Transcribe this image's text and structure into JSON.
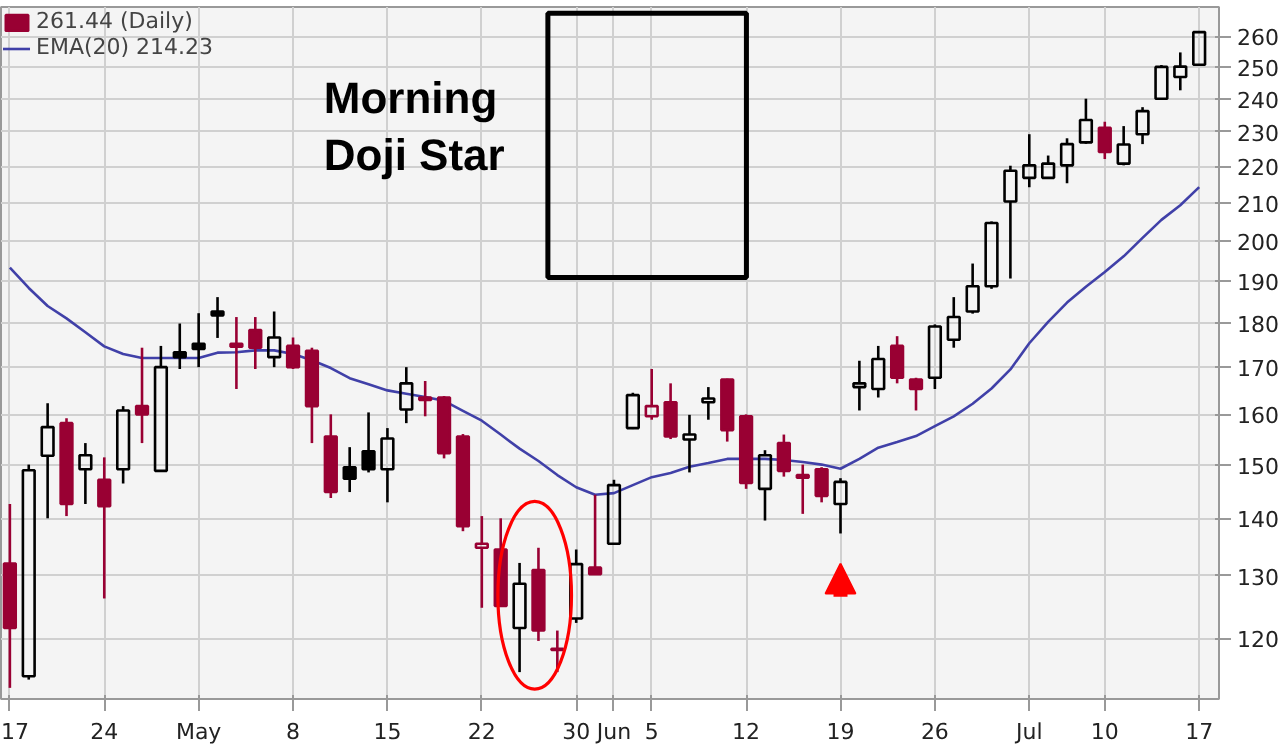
{
  "chart_data": {
    "type": "candlestick",
    "categories": [
      "17",
      null,
      null,
      null,
      null,
      "24",
      null,
      null,
      null,
      null,
      "May",
      null,
      null,
      null,
      null,
      "8",
      null,
      null,
      null,
      null,
      "15",
      null,
      null,
      null,
      null,
      "22",
      null,
      null,
      null,
      null,
      "30",
      null,
      "Jun",
      null,
      "5",
      null,
      null,
      null,
      null,
      "12",
      null,
      null,
      null,
      null,
      "19",
      null,
      null,
      null,
      null,
      "26",
      null,
      null,
      null,
      null,
      "Jul",
      null,
      null,
      null,
      "10",
      null,
      null,
      null,
      null,
      "17"
    ],
    "series": [
      {
        "name": "261.44 (Daily)",
        "ohlc": [
          [
            132.1,
            142.6,
            112.6,
            121.6
          ],
          [
            114.3,
            150,
            113.8,
            148.9
          ],
          [
            151.7,
            162.3,
            140,
            157.4
          ],
          [
            158.2,
            159.2,
            140.4,
            142.6
          ],
          [
            149.1,
            154.2,
            142.6,
            151.8
          ],
          [
            147.1,
            151.4,
            126.3,
            142.2
          ],
          [
            149.1,
            161.7,
            146.4,
            160.8
          ],
          [
            161.7,
            174.3,
            154.2,
            160
          ],
          [
            148.8,
            174.7,
            148.8,
            170
          ],
          [
            173.3,
            179.8,
            169.6,
            172.2
          ],
          [
            175.2,
            182.2,
            170,
            174
          ],
          [
            182.6,
            186,
            176.5,
            181.7
          ],
          [
            175.2,
            181.3,
            165.3,
            174.5
          ],
          [
            178.3,
            181.3,
            169.6,
            174.3
          ],
          [
            172.2,
            182.6,
            170,
            176.6
          ],
          [
            174.7,
            176.6,
            169.6,
            170
          ],
          [
            173.6,
            174.3,
            154.2,
            161.7
          ],
          [
            155.5,
            160,
            143.7,
            144.8
          ],
          [
            149.5,
            153.4,
            144.8,
            147.3
          ],
          [
            152.6,
            160.4,
            148.5,
            149.1
          ],
          [
            149.1,
            157.2,
            142.9,
            155.1
          ],
          [
            161,
            170,
            158.2,
            166.5
          ],
          [
            163.5,
            167,
            159.6,
            163
          ],
          [
            163.5,
            163.8,
            151.2,
            152.2
          ],
          [
            155.5,
            156,
            137.7,
            138.6
          ],
          [
            134.8,
            140.4,
            124.8,
            135.5
          ],
          [
            134.5,
            140,
            125,
            125.1
          ],
          [
            121.6,
            132.2,
            114.9,
            128.7
          ],
          [
            131,
            134.8,
            119.6,
            121.2
          ],
          [
            118.4,
            121.2,
            114.9,
            118.2
          ],
          [
            123.1,
            134.5,
            122.4,
            132
          ],
          [
            131.4,
            144.3,
            130.3,
            130.3
          ],
          [
            135.5,
            147.1,
            135.5,
            146.1
          ],
          [
            157.2,
            164.5,
            157,
            164
          ],
          [
            159.6,
            169.6,
            158.9,
            161.7
          ],
          [
            162.5,
            166.5,
            155,
            155.5
          ],
          [
            154.9,
            159.9,
            148.5,
            155.9
          ],
          [
            162.5,
            165.7,
            158.9,
            163.3
          ],
          [
            167.3,
            167.5,
            154.5,
            156.8
          ],
          [
            159.6,
            160,
            145.4,
            146.5
          ],
          [
            145.4,
            152.8,
            139.6,
            151.8
          ],
          [
            154.2,
            155.9,
            147.7,
            148.8
          ],
          [
            148,
            150,
            140.8,
            147.5
          ],
          [
            149.1,
            149.5,
            142.9,
            144.1
          ],
          [
            142.6,
            147.4,
            137.3,
            146.7
          ],
          [
            165.7,
            171.4,
            160.8,
            166.5
          ],
          [
            165.3,
            174.7,
            163.5,
            171.8
          ],
          [
            174.7,
            176.9,
            166.5,
            167.7
          ],
          [
            167.3,
            167.7,
            160.8,
            165.3
          ],
          [
            167.7,
            179.6,
            165.3,
            179.1
          ],
          [
            176.1,
            186,
            174.3,
            181.3
          ],
          [
            182.6,
            194.2,
            182.1,
            188.6
          ],
          [
            188.6,
            205,
            188,
            204.6
          ],
          [
            210.3,
            220.2,
            190.5,
            218.8
          ],
          [
            216.8,
            229.3,
            214.2,
            220.3
          ],
          [
            216.8,
            223.1,
            216.5,
            220.8
          ],
          [
            220.3,
            228.1,
            215.3,
            226.4
          ],
          [
            226.9,
            240,
            226.5,
            233.5
          ],
          [
            231.2,
            233,
            222.1,
            224.1
          ],
          [
            220.8,
            231.7,
            220.3,
            226.3
          ],
          [
            229.3,
            237.4,
            226.4,
            236.2
          ],
          [
            240,
            250.6,
            240,
            250
          ],
          [
            246.8,
            254.7,
            242.6,
            250.1
          ],
          [
            250.7,
            261.5,
            250.5,
            261.44
          ]
        ],
        "colors": [
          "#990033",
          "#000000",
          "#000000",
          "#990033",
          "#000000",
          "#990033",
          "#000000",
          "#990033",
          "#000000",
          "#000000",
          "#000000",
          "#000000",
          "#990033",
          "#990033",
          "#000000",
          "#990033",
          "#990033",
          "#990033",
          "#000000",
          "#000000",
          "#000000",
          "#000000",
          "#990033",
          "#990033",
          "#990033",
          "#990033",
          "#990033",
          "#000000",
          "#990033",
          "#990033",
          "#000000",
          "#990033",
          "#000000",
          "#000000",
          "#990033",
          "#990033",
          "#000000",
          "#000000",
          "#990033",
          "#990033",
          "#000000",
          "#990033",
          "#990033",
          "#990033",
          "#000000",
          "#000000",
          "#000000",
          "#990033",
          "#990033",
          "#000000",
          "#000000",
          "#000000",
          "#000000",
          "#000000",
          "#000000",
          "#000000",
          "#000000",
          "#000000",
          "#990033",
          "#000000",
          "#000000",
          "#000000",
          "#000000",
          "#000000"
        ]
      },
      {
        "name": "EMA(20) 214.23",
        "type": "line",
        "color": "#4040a8",
        "values": [
          193.2,
          188.2,
          183.9,
          181.0,
          177.8,
          174.6,
          172.9,
          172.0,
          172.0,
          172.0,
          172.0,
          173.2,
          173.3,
          173.7,
          173.7,
          172.9,
          171.5,
          169.8,
          167.6,
          166.3,
          165.0,
          164.3,
          163.6,
          162.8,
          160.7,
          158.7,
          155.9,
          153.1,
          150.7,
          148.0,
          145.7,
          144.3,
          144.6,
          146.1,
          147.6,
          148.4,
          149.6,
          150.3,
          151.1,
          151.1,
          151.1,
          150.9,
          150.5,
          150.0,
          149.2,
          151.1,
          153.3,
          154.4,
          155.6,
          157.6,
          159.6,
          162.2,
          165.4,
          169.5,
          175.3,
          180.2,
          184.7,
          188.5,
          192.1,
          196.0,
          200.7,
          205.4,
          209.3,
          214.23
        ]
      }
    ],
    "ylim": [
      111,
      270
    ],
    "yticks": [
      120,
      130,
      140,
      150,
      160,
      170,
      180,
      190,
      200,
      210,
      220,
      230,
      240,
      250,
      260
    ],
    "log": true,
    "grid": true,
    "legend": "top left",
    "annotations": [
      "Morning\nDoji Star"
    ]
  }
}
